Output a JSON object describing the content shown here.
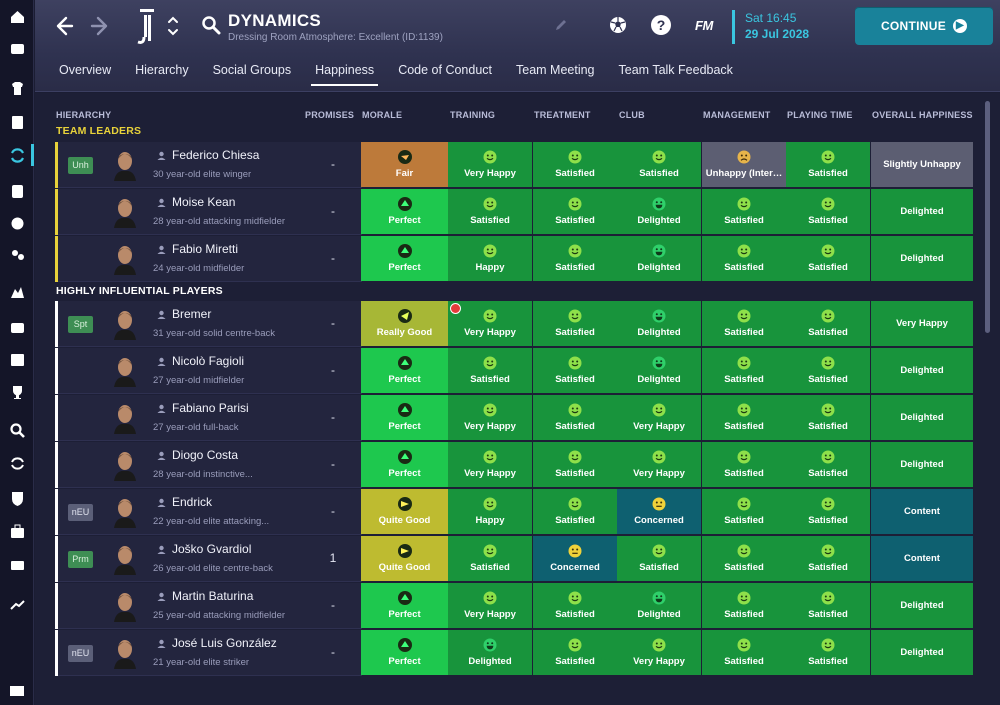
{
  "header": {
    "title": "DYNAMICS",
    "subtitle": "Dressing Room Atmosphere: Excellent (ID:1139)",
    "fm_logo": "FM",
    "date_day": "Sat 16:45",
    "date_date": "29 Jul 2028",
    "continue_label": "CONTINUE",
    "help_label": "?"
  },
  "tabs": [
    {
      "label": "Overview"
    },
    {
      "label": "Hierarchy"
    },
    {
      "label": "Social Groups"
    },
    {
      "label": "Happiness"
    },
    {
      "label": "Code of Conduct"
    },
    {
      "label": "Team Meeting"
    },
    {
      "label": "Team Talk Feedback"
    }
  ],
  "active_tab": "Happiness",
  "columns": {
    "hierarchy": "HIERARCHY",
    "promises": "PROMISES",
    "morale": "MORALE",
    "training": "TRAINING",
    "treatment": "TREATMENT",
    "club": "CLUB",
    "management": "MANAGEMENT",
    "playing_time": "PLAYING TIME",
    "overall": "OVERALL HAPPINESS"
  },
  "groups": [
    {
      "title": "TEAM LEADERS"
    },
    {
      "title": "HIGHLY INFLUENTIAL PLAYERS"
    }
  ],
  "players": [
    {
      "badge": "Unh",
      "name": "Federico Chiesa",
      "desc": "30 year-old elite winger",
      "promises": "-",
      "morale": "Fair",
      "training": "Very Happy",
      "treatment": "Satisfied",
      "club": "Satisfied",
      "management": "Unhappy (Inter…",
      "playing_time": "Satisfied",
      "overall": "Slightly Unhappy"
    },
    {
      "badge": "",
      "name": "Moise Kean",
      "desc": "28 year-old attacking midfielder",
      "promises": "-",
      "morale": "Perfect",
      "training": "Satisfied",
      "treatment": "Satisfied",
      "club": "Delighted",
      "management": "Satisfied",
      "playing_time": "Satisfied",
      "overall": "Delighted"
    },
    {
      "badge": "",
      "name": "Fabio Miretti",
      "desc": "24 year-old midfielder",
      "promises": "-",
      "morale": "Perfect",
      "training": "Happy",
      "treatment": "Satisfied",
      "club": "Delighted",
      "management": "Satisfied",
      "playing_time": "Satisfied",
      "overall": "Delighted"
    },
    {
      "badge": "Spt",
      "name": "Bremer",
      "desc": "31 year-old solid centre-back",
      "promises": "-",
      "morale": "Really Good",
      "training": "Very Happy",
      "treatment": "Satisfied",
      "club": "Delighted",
      "management": "Satisfied",
      "playing_time": "Satisfied",
      "overall": "Very Happy"
    },
    {
      "badge": "",
      "name": "Nicolò Fagioli",
      "desc": "27 year-old midfielder",
      "promises": "-",
      "morale": "Perfect",
      "training": "Satisfied",
      "treatment": "Satisfied",
      "club": "Delighted",
      "management": "Satisfied",
      "playing_time": "Satisfied",
      "overall": "Delighted"
    },
    {
      "badge": "",
      "name": "Fabiano Parisi",
      "desc": "27 year-old full-back",
      "promises": "-",
      "morale": "Perfect",
      "training": "Very Happy",
      "treatment": "Satisfied",
      "club": "Very Happy",
      "management": "Satisfied",
      "playing_time": "Satisfied",
      "overall": "Delighted"
    },
    {
      "badge": "",
      "name": "Diogo Costa",
      "desc": "28 year-old instinctive...",
      "promises": "-",
      "morale": "Perfect",
      "training": "Very Happy",
      "treatment": "Satisfied",
      "club": "Very Happy",
      "management": "Satisfied",
      "playing_time": "Satisfied",
      "overall": "Delighted"
    },
    {
      "badge": "nEU",
      "name": "Endrick",
      "desc": "22 year-old elite attacking...",
      "promises": "-",
      "morale": "Quite Good",
      "training": "Happy",
      "treatment": "Satisfied",
      "club": "Concerned",
      "management": "Satisfied",
      "playing_time": "Satisfied",
      "overall": "Content"
    },
    {
      "badge": "Prm",
      "name": "Joško Gvardiol",
      "desc": "26 year-old elite centre-back",
      "promises": "1",
      "morale": "Quite Good",
      "training": "Satisfied",
      "treatment": "Concerned",
      "club": "Satisfied",
      "management": "Satisfied",
      "playing_time": "Satisfied",
      "overall": "Content"
    },
    {
      "badge": "",
      "name": "Martin Baturina",
      "desc": "25 year-old attacking midfielder",
      "promises": "-",
      "morale": "Perfect",
      "training": "Very Happy",
      "treatment": "Satisfied",
      "club": "Delighted",
      "management": "Satisfied",
      "playing_time": "Satisfied",
      "overall": "Delighted"
    },
    {
      "badge": "nEU",
      "name": "José Luis González",
      "desc": "21 year-old elite striker",
      "promises": "-",
      "morale": "Perfect",
      "training": "Delighted",
      "treatment": "Satisfied",
      "club": "Very Happy",
      "management": "Satisfied",
      "playing_time": "Satisfied",
      "overall": "Delighted"
    }
  ],
  "colors": {
    "accent": "#3ac6e0",
    "leader_bar": "#e8d23a",
    "satisfied_green": "#18943c",
    "perfect_green": "#1ec84e",
    "concerned_teal": "#0e6070",
    "unhappy_grey": "#5c5e72",
    "fair_orange": "#bd7a3a"
  },
  "icons": [
    "home-icon",
    "inbox-icon",
    "squad-icon",
    "tactics-icon",
    "dynamics-icon",
    "medical-icon",
    "scouting-icon",
    "recruitment-icon",
    "club-vision-icon",
    "finances-icon",
    "schedule-icon",
    "trophy-icon",
    "search-icon",
    "transfers-icon",
    "shield-icon",
    "briefcase-icon",
    "tickets-icon",
    "chart-icon"
  ]
}
